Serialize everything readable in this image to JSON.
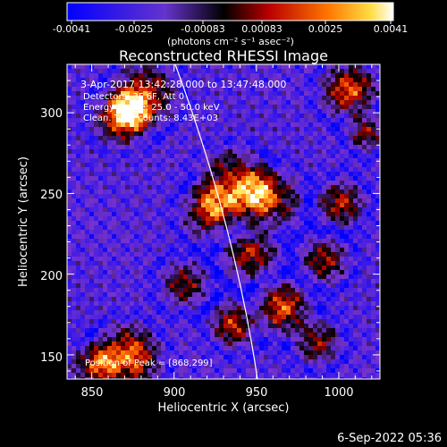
{
  "colorbar": {
    "ticks": [
      "-0.0041",
      "-0.0025",
      "-0.00083",
      "0.00083",
      "0.0025",
      "0.0041"
    ],
    "unit_label": "(photons cm⁻² s⁻¹ asec⁻²)",
    "range": [
      -0.0041,
      0.0041
    ]
  },
  "chart_data": {
    "type": "heatmap",
    "title": "Reconstructed RHESSI Image",
    "xlabel": "Heliocentric X (arcsec)",
    "ylabel": "Heliocentric Y (arcsec)",
    "xlim": [
      835,
      1025
    ],
    "ylim": [
      135,
      330
    ],
    "xticks": [
      "850",
      "900",
      "950",
      "1000"
    ],
    "yticks": [
      "150",
      "200",
      "250",
      "300"
    ],
    "colormap": [
      "#0000ff",
      "#7733cc",
      "#000000",
      "#aa0000",
      "#ff6600",
      "#ffee66",
      "#ffffff"
    ],
    "annotations": [
      "3-Apr-2017 13:42:28.000 to 13:47:48.000",
      "Detectors: 3F 6F, Att 0",
      "Energy Range: 25.0 - 50.0 keV",
      "Clean. Total counts: 8.43E+03"
    ],
    "peak_label": "Position of Peak = [868,299]",
    "limb_arc": "white solar limb line"
  },
  "footer": {
    "timestamp": "6-Sep-2022 05:36"
  }
}
